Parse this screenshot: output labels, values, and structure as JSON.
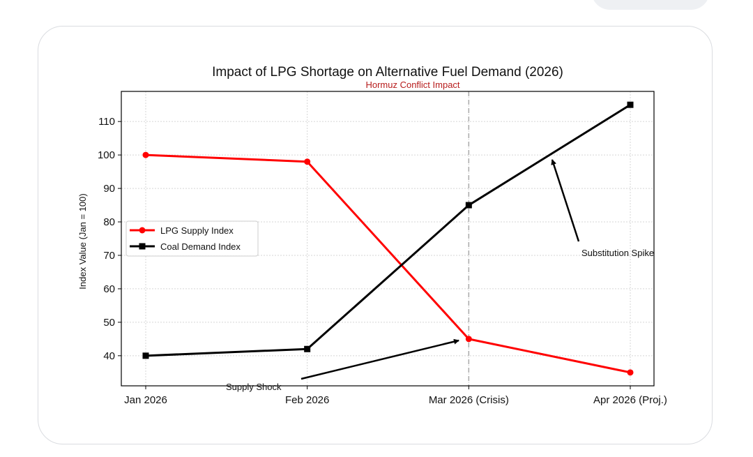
{
  "chart_data": {
    "type": "line",
    "title": "Impact of LPG Shortage on Alternative Fuel Demand (2026)",
    "subtitle": "Hormuz Conflict Impact",
    "xlabel": "",
    "ylabel": "Index Value (Jan = 100)",
    "categories": [
      "Jan 2026",
      "Feb 2026",
      "Mar 2026 (Crisis)",
      "Apr 2026 (Proj.)"
    ],
    "ylim": [
      31,
      119
    ],
    "yticks": [
      40,
      50,
      60,
      70,
      80,
      90,
      100,
      110
    ],
    "grid": true,
    "legend_position": "center-left",
    "series": [
      {
        "name": "LPG Supply Index",
        "values": [
          100,
          98,
          45,
          35
        ],
        "color": "#ff0000",
        "marker": "circle"
      },
      {
        "name": "Coal Demand Index",
        "values": [
          40,
          42,
          85,
          115
        ],
        "color": "#000000",
        "marker": "square"
      }
    ],
    "crisis_line_index": 2,
    "annotations": [
      {
        "text": "Supply Shock",
        "arrow_to_category": 2,
        "arrow_to_value": 45
      },
      {
        "text": "Substitution Spike",
        "arrow_to_x": 2.5,
        "arrow_to_value": 100
      }
    ]
  }
}
